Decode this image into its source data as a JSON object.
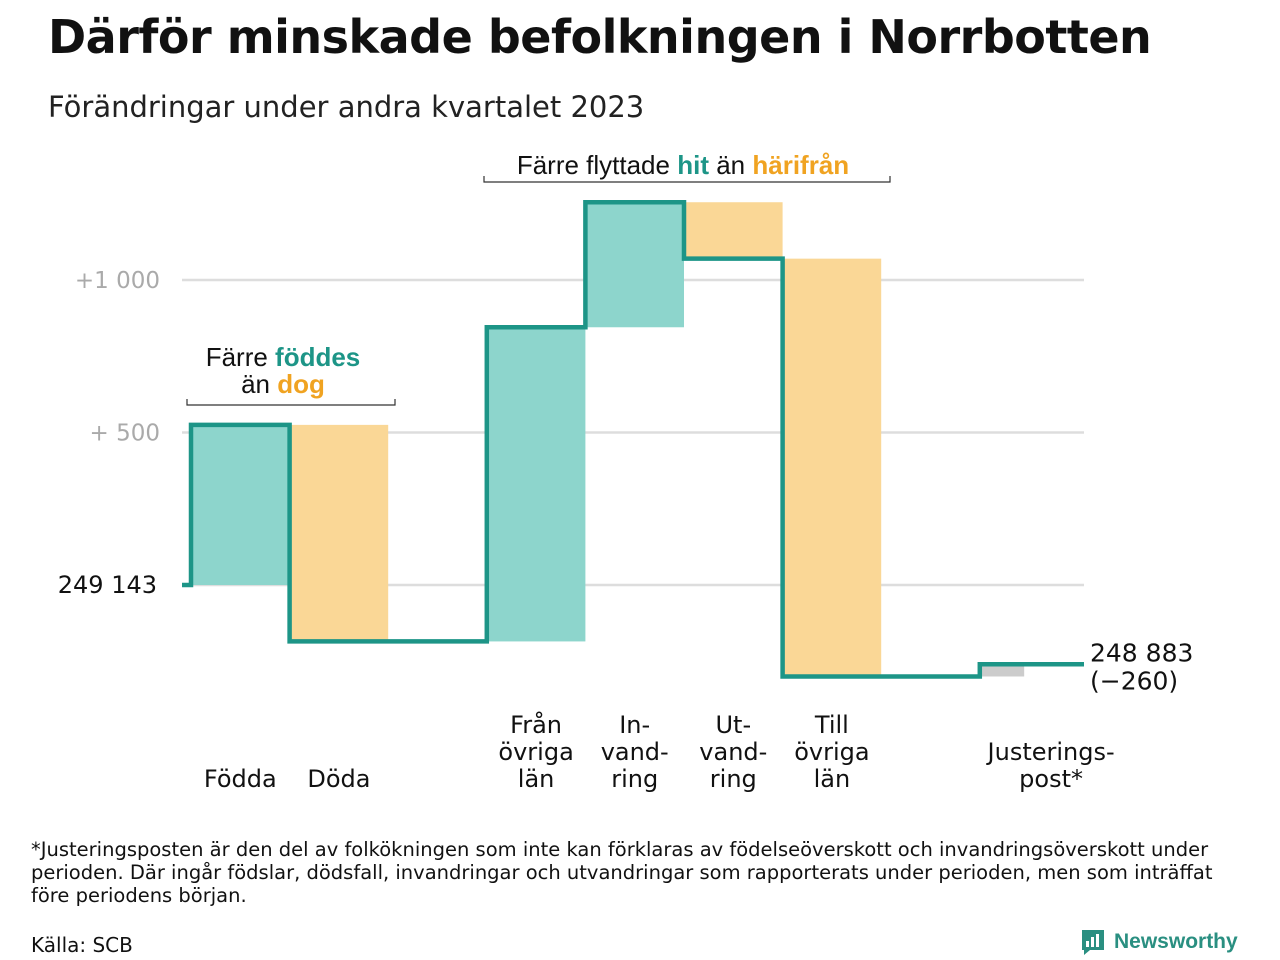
{
  "title": "Därför minskade befolkningen i Norrbotten",
  "subtitle": "Förändringar under andra kvartalet 2023",
  "colors": {
    "teal": "#8dd5cc",
    "orange": "#fad796",
    "gray": "#cccccc",
    "line": "#1d9587",
    "grid": "#dddddd"
  },
  "chart_data": {
    "type": "waterfall",
    "start_value": 249143,
    "start_label": "249   143",
    "end_value": 248883,
    "end_label": "248 883",
    "end_change_label": "(−260)",
    "yticks": [
      {
        "value": 500,
        "label": "+  500"
      },
      {
        "value": 1000,
        "label": "+1   000"
      }
    ],
    "ylim_relative": [
      -350,
      1270
    ],
    "steps": [
      {
        "label": [
          "Födda"
        ],
        "change": 525,
        "color": "teal"
      },
      {
        "label": [
          "Döda"
        ],
        "change": -710,
        "color": "orange"
      },
      {
        "label": [],
        "change": 0,
        "color": "none"
      },
      {
        "label": [
          "Från",
          "övriga",
          "län"
        ],
        "change": 1030,
        "color": "teal"
      },
      {
        "label": [
          "In-",
          "vand-",
          "ring"
        ],
        "change": 410,
        "color": "teal"
      },
      {
        "label": [
          "Ut-",
          "vand-",
          "ring"
        ],
        "change": -185,
        "color": "orange"
      },
      {
        "label": [
          "Till",
          "övriga",
          "län"
        ],
        "change": -1370,
        "color": "orange"
      },
      {
        "label": [],
        "change": 0,
        "color": "none"
      },
      {
        "label": [
          "Justerings-",
          "post*"
        ],
        "change": 40,
        "color": "gray"
      }
    ],
    "annotations": [
      {
        "parts": [
          {
            "text": "Färre ",
            "color": "black"
          },
          {
            "text": "föddes",
            "color": "teal"
          }
        ],
        "line2": [
          {
            "text": "än ",
            "color": "black"
          },
          {
            "text": "dog",
            "color": "orange"
          }
        ]
      },
      {
        "parts": [
          {
            "text": "Färre flyttade ",
            "color": "black"
          },
          {
            "text": "hit",
            "color": "teal"
          },
          {
            "text": " än ",
            "color": "black"
          },
          {
            "text": "härifrån",
            "color": "orange"
          }
        ]
      }
    ]
  },
  "footnote": "*Justeringsposten är den del av folkökningen som inte kan förklaras av födelseöverskott och invandringsöverskott under perioden. Där ingår födslar, dödsfall, invandringar och utvandringar som rapporterats under perioden, men som inträffat före periodens början.",
  "source": "Källa: SCB",
  "brand": {
    "name": "Newsworthy",
    "icon": "chart-bubble-icon"
  }
}
